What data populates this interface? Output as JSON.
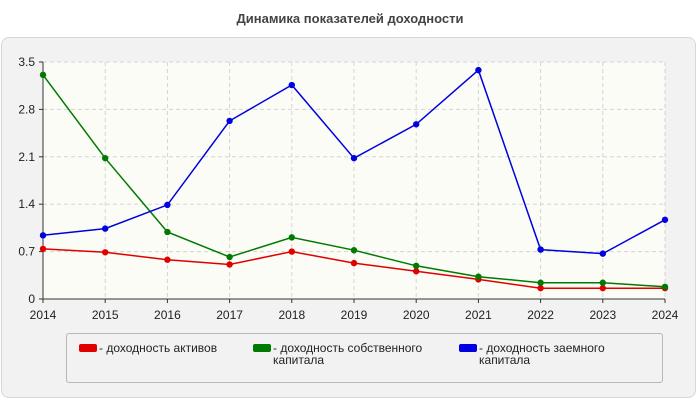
{
  "title": "Динамика показателей доходности",
  "chart_data": {
    "type": "line",
    "x": [
      "2014",
      "2015",
      "2016",
      "2017",
      "2018",
      "2019",
      "2020",
      "2021",
      "2022",
      "2023",
      "2024"
    ],
    "yticks": [
      "0",
      "0.7",
      "1.4",
      "2.1",
      "2.8",
      "3.5"
    ],
    "ylim": [
      0,
      3.5
    ],
    "grid": true,
    "legend_position": "bottom",
    "series": [
      {
        "name": "- доходность активов",
        "color": "#e00000",
        "values": [
          0.74,
          0.69,
          0.58,
          0.51,
          0.7,
          0.53,
          0.41,
          0.29,
          0.16,
          0.16,
          0.16
        ]
      },
      {
        "name": "- доходность собственного капитала",
        "color": "#007a00",
        "values": [
          3.31,
          2.08,
          0.99,
          0.62,
          0.91,
          0.72,
          0.49,
          0.33,
          0.24,
          0.24,
          0.18
        ]
      },
      {
        "name": "- доходность заемного капитала",
        "color": "#0000e0",
        "values": [
          0.94,
          1.04,
          1.39,
          2.63,
          3.16,
          2.08,
          2.58,
          3.38,
          0.73,
          0.67,
          1.17
        ]
      }
    ]
  }
}
